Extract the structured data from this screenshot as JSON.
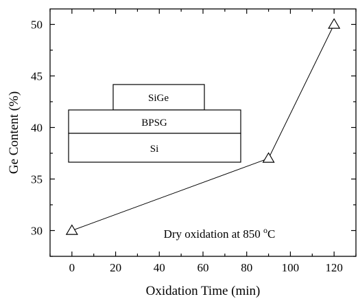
{
  "chart_data": {
    "type": "line",
    "x": [
      0,
      90,
      120
    ],
    "y": [
      30,
      37,
      50
    ],
    "marker": "open-triangle",
    "xlabel": "Oxidation Time (min)",
    "ylabel": "Ge Content (%)",
    "xlim": [
      -10,
      130
    ],
    "ylim": [
      27.5,
      51.5
    ],
    "xticks": [
      0,
      20,
      40,
      60,
      80,
      100,
      120
    ],
    "yticks": [
      30,
      35,
      40,
      45,
      50
    ],
    "grid": false,
    "annotation": "Dry oxidation at 850 °C",
    "inset_layers": [
      "SiGe",
      "BPSG",
      "Si"
    ]
  }
}
